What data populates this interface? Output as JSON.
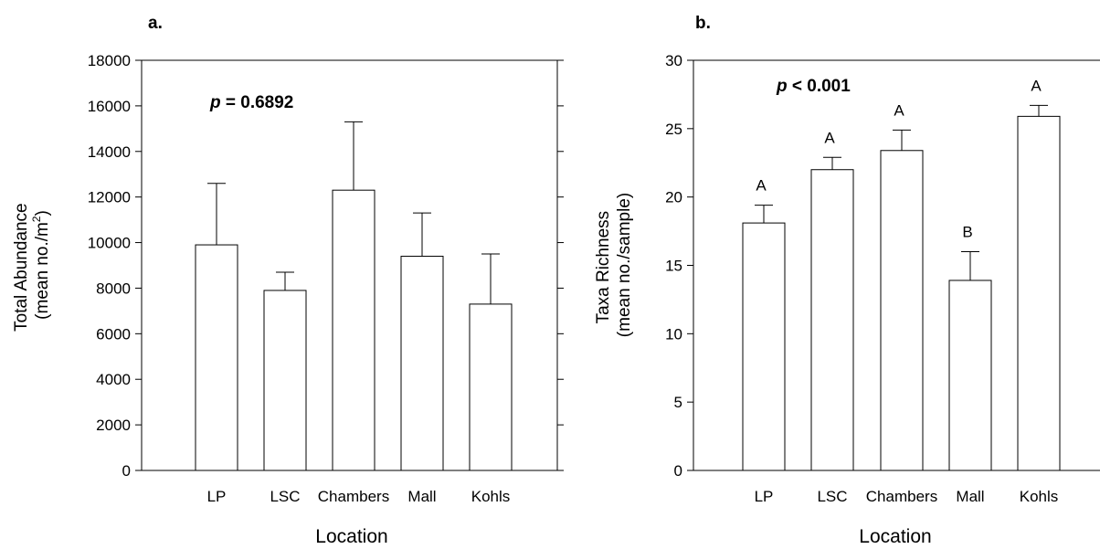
{
  "chart_data": [
    {
      "type": "bar",
      "panel_label": "a.",
      "annotation": {
        "prefix": "p",
        "rest": " = 0.6892"
      },
      "xlabel": "Location",
      "ylabel_line1": "Total Abundance",
      "ylabel_line2_main": "(mean no./m",
      "ylabel_line2_sup": "2",
      "ylabel_line2_end": ")",
      "categories": [
        "LP",
        "LSC",
        "Chambers",
        "Mall",
        "Kohls"
      ],
      "values": [
        9900,
        7900,
        12300,
        9400,
        7300
      ],
      "error_upper": [
        12600,
        8700,
        15300,
        11300,
        9500
      ],
      "ylim": [
        0,
        18000
      ],
      "yticks": [
        "0",
        "2000",
        "4000",
        "6000",
        "8000",
        "10000",
        "12000",
        "14000",
        "16000",
        "18000"
      ]
    },
    {
      "type": "bar",
      "panel_label": "b.",
      "annotation": {
        "prefix": "p",
        "rest": " < 0.001"
      },
      "xlabel": "Location",
      "ylabel_line1": "Taxa Richness",
      "ylabel_line2_main": "(mean no./sample)",
      "ylabel_line2_sup": "",
      "ylabel_line2_end": "",
      "categories": [
        "LP",
        "LSC",
        "Chambers",
        "Mall",
        "Kohls"
      ],
      "values": [
        18.1,
        22.0,
        23.4,
        13.9,
        25.9
      ],
      "error_upper": [
        19.4,
        22.9,
        24.9,
        16.0,
        26.7
      ],
      "letters": [
        "A",
        "A",
        "A",
        "B",
        "A"
      ],
      "ylim": [
        0,
        30
      ],
      "yticks": [
        "0",
        "5",
        "10",
        "15",
        "20",
        "25",
        "30"
      ]
    }
  ]
}
